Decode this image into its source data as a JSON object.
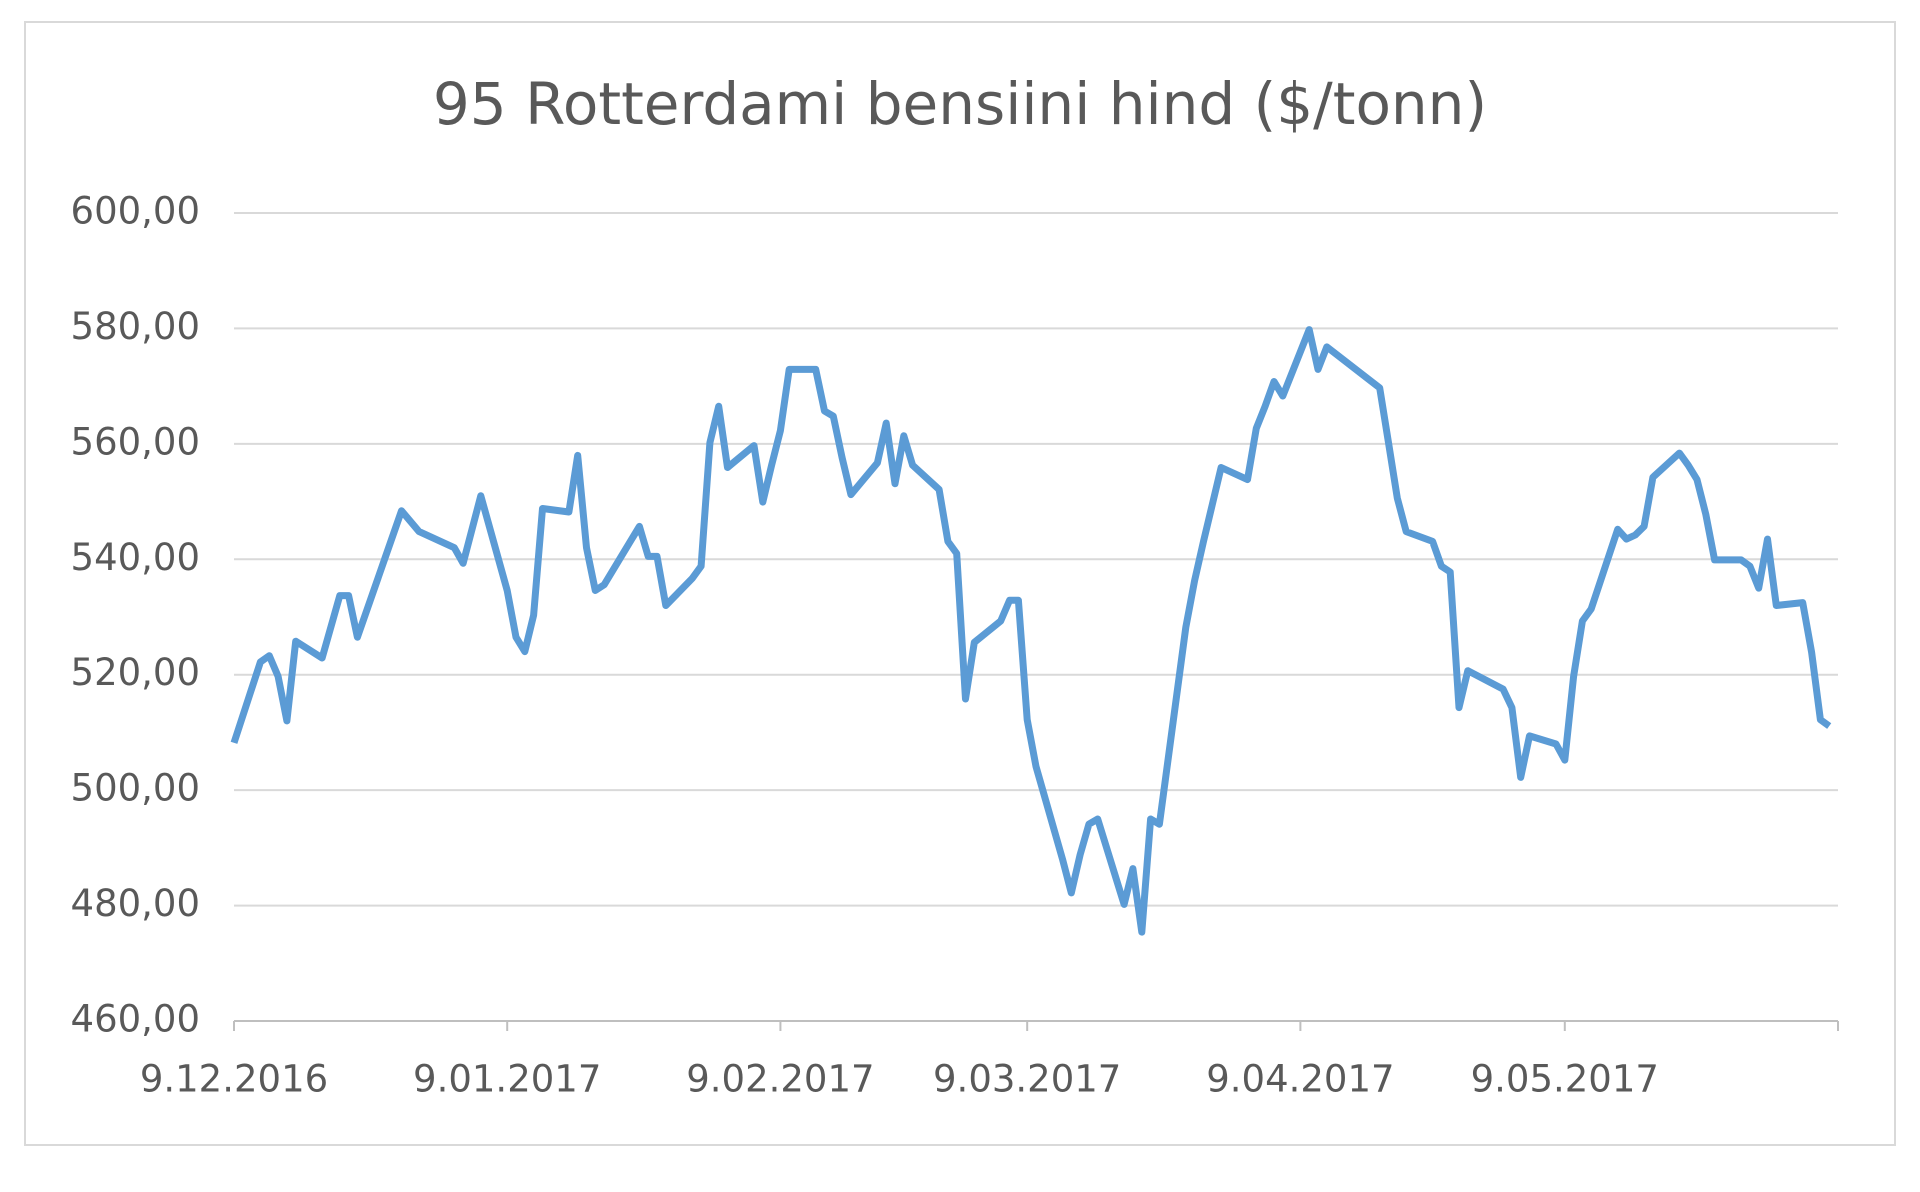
{
  "chart_data": {
    "type": "line",
    "title": "95 Rotterdami bensiini hind ($/tonn)",
    "x": [
      "2016-12-09",
      "2016-12-12",
      "2016-12-13",
      "2016-12-14",
      "2016-12-15",
      "2016-12-16",
      "2016-12-19",
      "2016-12-21",
      "2016-12-22",
      "2016-12-23",
      "2016-12-28",
      "2016-12-30",
      "2017-01-03",
      "2017-01-04",
      "2017-01-06",
      "2017-01-09",
      "2017-01-10",
      "2017-01-11",
      "2017-01-12",
      "2017-01-13",
      "2017-01-16",
      "2017-01-17",
      "2017-01-18",
      "2017-01-19",
      "2017-01-20",
      "2017-01-24",
      "2017-01-25",
      "2017-01-26",
      "2017-01-27",
      "2017-01-30",
      "2017-01-31",
      "2017-02-01",
      "2017-02-02",
      "2017-02-03",
      "2017-02-06",
      "2017-02-07",
      "2017-02-08",
      "2017-02-09",
      "2017-02-10",
      "2017-02-13",
      "2017-02-14",
      "2017-02-15",
      "2017-02-16",
      "2017-02-17",
      "2017-02-20",
      "2017-02-21",
      "2017-02-22",
      "2017-02-23",
      "2017-02-24",
      "2017-02-27",
      "2017-02-28",
      "2017-03-01",
      "2017-03-02",
      "2017-03-03",
      "2017-03-06",
      "2017-03-07",
      "2017-03-08",
      "2017-03-09",
      "2017-03-10",
      "2017-03-13",
      "2017-03-14",
      "2017-03-15",
      "2017-03-16",
      "2017-03-17",
      "2017-03-20",
      "2017-03-21",
      "2017-03-22",
      "2017-03-23",
      "2017-03-24",
      "2017-03-27",
      "2017-03-28",
      "2017-03-29",
      "2017-03-30",
      "2017-03-31",
      "2017-04-03",
      "2017-04-04",
      "2017-04-05",
      "2017-04-06",
      "2017-04-07",
      "2017-04-10",
      "2017-04-11",
      "2017-04-12",
      "2017-04-18",
      "2017-04-19",
      "2017-04-20",
      "2017-04-21",
      "2017-04-24",
      "2017-04-25",
      "2017-04-26",
      "2017-04-27",
      "2017-04-28",
      "2017-05-02",
      "2017-05-03",
      "2017-05-04",
      "2017-05-05",
      "2017-05-08",
      "2017-05-09",
      "2017-05-10",
      "2017-05-11",
      "2017-05-12",
      "2017-05-15",
      "2017-05-16",
      "2017-05-17",
      "2017-05-18",
      "2017-05-19",
      "2017-05-22",
      "2017-05-23",
      "2017-05-24",
      "2017-05-25",
      "2017-05-26",
      "2017-05-29",
      "2017-05-30",
      "2017-05-31",
      "2017-06-01",
      "2017-06-02",
      "2017-06-05",
      "2017-06-06",
      "2017-06-07",
      "2017-06-08"
    ],
    "series": [
      {
        "color": "#5b9bd5",
        "values": [
          508.2,
          522.2,
          523.3,
          519.7,
          512,
          525.8,
          522.9,
          533.7,
          533.7,
          526.5,
          548.4,
          544.8,
          542,
          539.3,
          551,
          534.6,
          526.5,
          524,
          530.3,
          548.8,
          548.2,
          558,
          542,
          534.6,
          535.6,
          545.7,
          540.5,
          540.5,
          532,
          536.7,
          538.8,
          560.2,
          566.5,
          555.9,
          559.7,
          549.9,
          556.3,
          562.3,
          572.9,
          572.9,
          565.7,
          564.8,
          557.6,
          551.2,
          556.7,
          563.6,
          553.1,
          561.4,
          556.3,
          552.1,
          543.1,
          541,
          515.8,
          525.6,
          529.3,
          532.9,
          532.9,
          512.2,
          504.1,
          488.1,
          482.2,
          488.8,
          494.1,
          495,
          480.2,
          486.4,
          475.4,
          495,
          494.1,
          528.2,
          536.3,
          543.1,
          549.5,
          555.9,
          553.8,
          562.7,
          566.5,
          570.8,
          568.3,
          579.8,
          572.9,
          576.8,
          569.7,
          560.2,
          550.6,
          544.8,
          543.1,
          538.8,
          537.8,
          514.3,
          520.7,
          517.5,
          514.3,
          502.2,
          509.4,
          508,
          505.2,
          519.7,
          529.3,
          531.4,
          545.2,
          543.5,
          544.2,
          545.7,
          554.2,
          558.4,
          556.3,
          553.8,
          547.8,
          539.9,
          539.9,
          538.8,
          535,
          543.5,
          532,
          532.5,
          523.9,
          512.2,
          511.1
        ]
      }
    ],
    "xlim": [
      "2016-12-09",
      "2017-06-09"
    ],
    "xticks": [
      {
        "value": "2016-12-09",
        "label": "9.12.2016"
      },
      {
        "value": "2017-01-09",
        "label": "9.01.2017"
      },
      {
        "value": "2017-02-09",
        "label": "9.02.2017"
      },
      {
        "value": "2017-03-09",
        "label": "9.03.2017"
      },
      {
        "value": "2017-04-09",
        "label": "9.04.2017"
      },
      {
        "value": "2017-05-09",
        "label": "9.05.2017"
      }
    ],
    "ylim": [
      460,
      600
    ],
    "yticks": [
      {
        "value": 460,
        "label": "460,00"
      },
      {
        "value": 480,
        "label": "480,00"
      },
      {
        "value": 500,
        "label": "500,00"
      },
      {
        "value": 520,
        "label": "520,00"
      },
      {
        "value": 540,
        "label": "540,00"
      },
      {
        "value": 560,
        "label": "560,00"
      },
      {
        "value": 580,
        "label": "580,00"
      },
      {
        "value": 600,
        "label": "600,00"
      }
    ],
    "grid": true
  }
}
